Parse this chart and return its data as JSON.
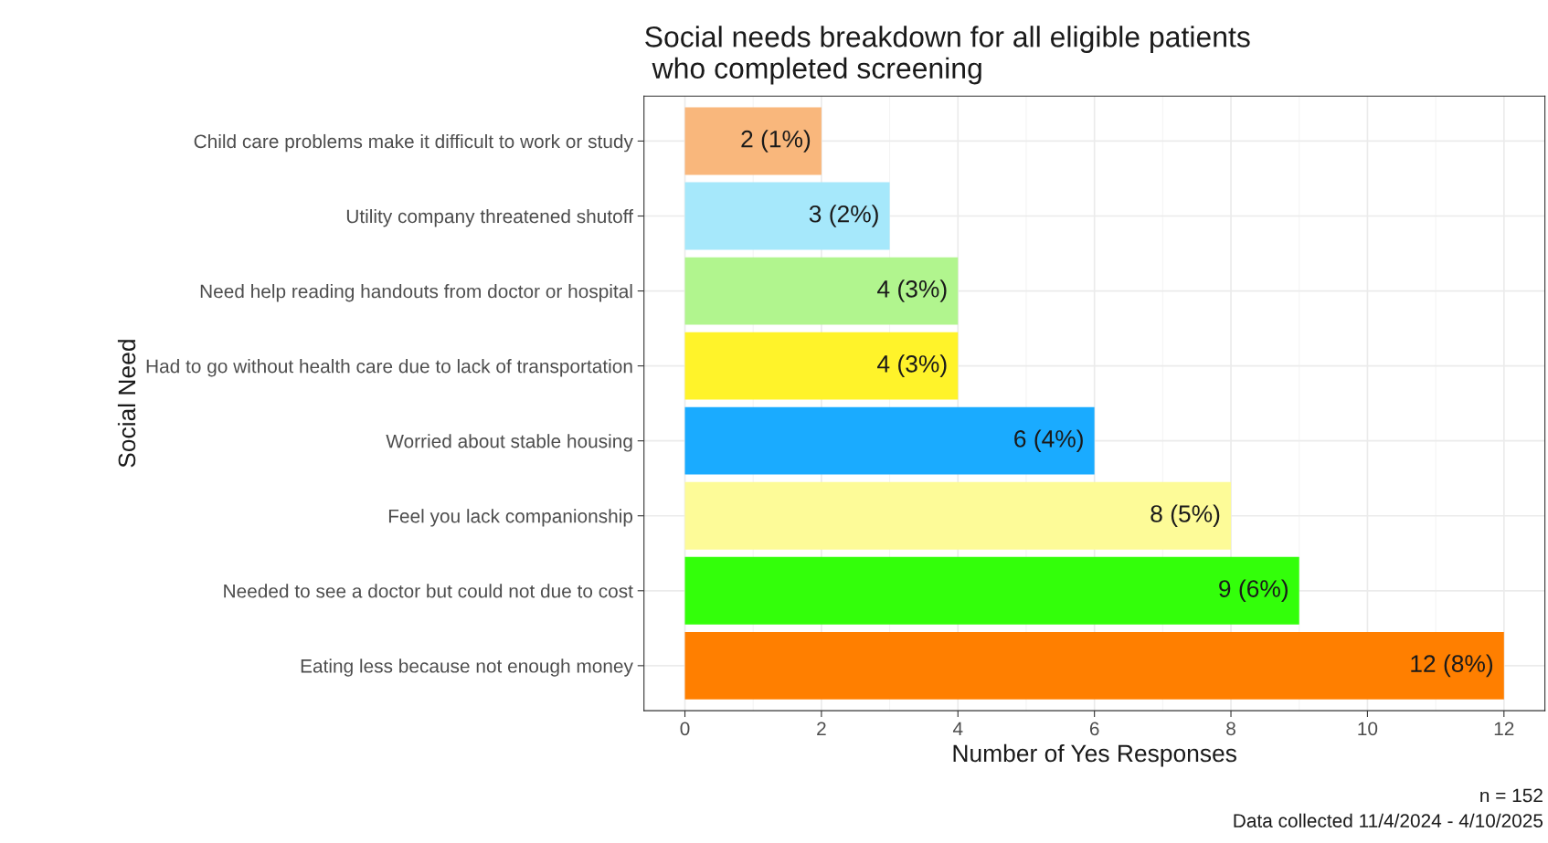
{
  "chart_data": {
    "type": "bar",
    "orientation": "horizontal",
    "title": "Social needs breakdown for all eligible patients\n who completed screening",
    "xlabel": "Number of Yes Responses",
    "ylabel": "Social Need",
    "categories": [
      "Child care problems make it difficult to work or study",
      "Utility company threatened shutoff",
      "Need help reading handouts from doctor or hospital",
      "Had to go without health care due to lack of transportation",
      "Worried about stable housing",
      "Feel you lack companionship",
      "Needed to see a doctor but could not due to cost",
      "Eating less because not enough money"
    ],
    "values": [
      2,
      3,
      4,
      4,
      6,
      8,
      9,
      12
    ],
    "colors": [
      "#f9b77c",
      "#a6e8fb",
      "#b1f58e",
      "#fff32a",
      "#1aabff",
      "#fdfb98",
      "#33ff0a",
      "#ff7f00"
    ],
    "value_labels": [
      "2 (1%)",
      "3 (2%)",
      "4 (3%)",
      "4 (3%)",
      "6 (4%)",
      "8 (5%)",
      "9 (6%)",
      "12 (8%)"
    ],
    "xlim": [
      -0.6,
      12.6
    ],
    "xticks": [
      0,
      2,
      4,
      6,
      8,
      10,
      12
    ],
    "grid": true,
    "legend": false,
    "annotations": [
      "n = 152",
      "Data collected 11/4/2024 - 4/10/2025"
    ]
  }
}
